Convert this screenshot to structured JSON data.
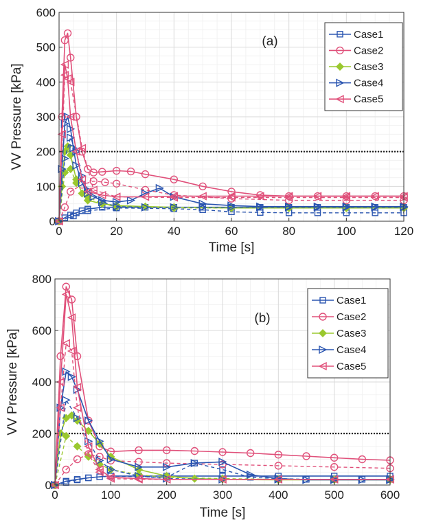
{
  "chart_data": [
    {
      "type": "line",
      "annotation": "(a)",
      "xlabel": "Time [s]",
      "ylabel": "VV Pressure [kPa]",
      "xlim": [
        0,
        120
      ],
      "ylim": [
        0,
        600
      ],
      "xticks": [
        "0",
        "20",
        "40",
        "60",
        "80",
        "100",
        "120"
      ],
      "yticks": [
        "0",
        "100",
        "200",
        "300",
        "400",
        "500",
        "600"
      ],
      "grid": true,
      "legend_position": "top-right",
      "reference_line": {
        "y": 200,
        "style": "dotted",
        "color": "#222222"
      },
      "series": [
        {
          "name": "Case1",
          "color": "#2a55b0",
          "marker": "square",
          "solid": {
            "x": [
              0,
              2,
              4,
              6,
              8,
              10,
              15,
              20,
              30,
              40,
              50,
              60,
              70,
              80,
              90,
              100,
              110,
              120
            ],
            "y": [
              0,
              10,
              18,
              24,
              30,
              35,
              40,
              40,
              40,
              40,
              40,
              40,
              40,
              40,
              40,
              40,
              40,
              40
            ]
          },
          "dashed": {
            "x": [
              0,
              5,
              10,
              20,
              40,
              50,
              60,
              70,
              80,
              90,
              100,
              110,
              120
            ],
            "y": [
              0,
              15,
              30,
              38,
              36,
              33,
              27,
              25,
              24,
              24,
              24,
              24,
              24
            ]
          }
        },
        {
          "name": "Case2",
          "color": "#e0507a",
          "marker": "circle",
          "solid": {
            "x": [
              0,
              1,
              2,
              3,
              4,
              6,
              8,
              10,
              12,
              15,
              20,
              25,
              30,
              40,
              50,
              60,
              70,
              80,
              90,
              100,
              110,
              120
            ],
            "y": [
              0,
              300,
              520,
              540,
              470,
              300,
              200,
              150,
              140,
              142,
              145,
              143,
              135,
              120,
              100,
              85,
              75,
              72,
              72,
              72,
              72,
              72
            ]
          },
          "dashed": {
            "x": [
              0,
              2,
              4,
              8,
              12,
              16,
              20,
              30,
              40,
              60,
              80,
              100,
              120
            ],
            "y": [
              0,
              40,
              85,
              105,
              115,
              112,
              108,
              90,
              75,
              65,
              60,
              60,
              60
            ]
          }
        },
        {
          "name": "Case3",
          "color": "#9ac82e",
          "marker": "diamond",
          "solid": {
            "x": [
              0,
              1,
              2,
              3,
              4,
              6,
              8,
              10,
              15,
              20,
              30,
              40,
              60,
              80,
              100,
              120
            ],
            "y": [
              0,
              100,
              200,
              215,
              190,
              120,
              80,
              60,
              50,
              45,
              42,
              40,
              38,
              38,
              38,
              38
            ]
          },
          "dashed": {
            "x": [
              0,
              2,
              4,
              6,
              10,
              15,
              20,
              40,
              60,
              80,
              100,
              120
            ],
            "y": [
              0,
              140,
              150,
              110,
              70,
              50,
              42,
              38,
              38,
              38,
              38,
              38
            ]
          }
        },
        {
          "name": "Case4",
          "color": "#2a55b0",
          "marker": "triangle-right",
          "solid": {
            "x": [
              0,
              1,
              2,
              3,
              4,
              5,
              6,
              8,
              10,
              12,
              15,
              20,
              25,
              30,
              35,
              40,
              50,
              60,
              70,
              80,
              90,
              100,
              110,
              120
            ],
            "y": [
              0,
              150,
              280,
              300,
              265,
              210,
              160,
              110,
              80,
              70,
              60,
              55,
              60,
              80,
              95,
              70,
              50,
              45,
              42,
              42,
              42,
              42,
              42,
              42
            ]
          },
          "dashed": {
            "x": [
              0,
              2,
              4,
              6,
              8,
              10,
              15,
              20,
              30,
              40,
              50,
              60,
              70,
              80,
              90,
              100,
              110,
              120
            ],
            "y": [
              0,
              180,
              240,
              200,
              130,
              90,
              55,
              42,
              40,
              40,
              40,
              40,
              40,
              40,
              40,
              40,
              40,
              40
            ]
          }
        },
        {
          "name": "Case5",
          "color": "#e0507a",
          "marker": "triangle-left",
          "solid": {
            "x": [
              0,
              1,
              2,
              3,
              4,
              6,
              8,
              10,
              15,
              20,
              30,
              40,
              50,
              60,
              70,
              80,
              90,
              100,
              110,
              120
            ],
            "y": [
              0,
              250,
              450,
              410,
              300,
              200,
              120,
              85,
              75,
              70,
              70,
              72,
              72,
              72,
              72,
              72,
              72,
              72,
              72,
              72
            ]
          },
          "dashed": {
            "x": [
              0,
              2,
              4,
              8,
              12,
              20,
              40,
              60,
              80,
              100,
              120
            ],
            "y": [
              0,
              420,
              400,
              210,
              90,
              70,
              68,
              68,
              68,
              68,
              68
            ]
          }
        }
      ]
    },
    {
      "type": "line",
      "annotation": "(b)",
      "xlabel": "Time [s]",
      "ylabel": "VV Pressure [kPa]",
      "xlim": [
        0,
        600
      ],
      "ylim": [
        0,
        800
      ],
      "xticks": [
        "0",
        "100",
        "200",
        "300",
        "400",
        "500",
        "600"
      ],
      "yticks": [
        "0",
        "200",
        "400",
        "600",
        "800"
      ],
      "grid": true,
      "legend_position": "top-right",
      "reference_line": {
        "y": 200,
        "style": "dotted",
        "color": "#222222"
      },
      "series": [
        {
          "name": "Case1",
          "color": "#2a55b0",
          "marker": "square",
          "solid": {
            "x": [
              0,
              20,
              40,
              60,
              80,
              100,
              150,
              200,
              300,
              400,
              500,
              600
            ],
            "y": [
              0,
              15,
              22,
              28,
              32,
              35,
              35,
              35,
              35,
              35,
              35,
              35
            ]
          },
          "dashed": {
            "x": [
              0,
              20,
              40,
              60,
              100,
              200,
              250,
              300,
              350,
              400,
              450,
              500,
              550,
              600
            ],
            "y": [
              0,
              10,
              20,
              28,
              35,
              30,
              85,
              60,
              30,
              25,
              22,
              22,
              22,
              22
            ]
          }
        },
        {
          "name": "Case2",
          "color": "#e0507a",
          "marker": "circle",
          "solid": {
            "x": [
              0,
              10,
              20,
              30,
              40,
              60,
              80,
              100,
              150,
              200,
              250,
              300,
              350,
              400,
              450,
              500,
              550,
              600
            ],
            "y": [
              0,
              500,
              770,
              720,
              500,
              250,
              150,
              130,
              135,
              135,
              132,
              128,
              124,
              118,
              112,
              106,
              100,
              96
            ]
          },
          "dashed": {
            "x": [
              0,
              20,
              40,
              60,
              80,
              100,
              150,
              200,
              300,
              400,
              500,
              600
            ],
            "y": [
              0,
              60,
              100,
              120,
              110,
              95,
              90,
              85,
              80,
              75,
              70,
              65
            ]
          }
        },
        {
          "name": "Case3",
          "color": "#9ac82e",
          "marker": "diamond",
          "solid": {
            "x": [
              0,
              10,
              20,
              30,
              40,
              60,
              80,
              100,
              150,
              200,
              250,
              300,
              400,
              500,
              600
            ],
            "y": [
              0,
              200,
              260,
              270,
              250,
              210,
              160,
              110,
              60,
              35,
              25,
              22,
              20,
              20,
              20
            ]
          },
          "dashed": {
            "x": [
              0,
              20,
              40,
              60,
              80,
              100,
              150,
              200,
              300,
              400,
              500,
              600
            ],
            "y": [
              0,
              190,
              150,
              110,
              80,
              60,
              40,
              30,
              25,
              22,
              22,
              22
            ]
          }
        },
        {
          "name": "Case4",
          "color": "#2a55b0",
          "marker": "triangle-right",
          "solid": {
            "x": [
              0,
              10,
              20,
              30,
              40,
              60,
              80,
              100,
              150,
              200,
              250,
              300,
              350,
              400,
              450,
              500,
              550,
              600
            ],
            "y": [
              0,
              300,
              440,
              420,
              370,
              250,
              170,
              100,
              70,
              70,
              85,
              90,
              40,
              25,
              20,
              20,
              20,
              20
            ]
          },
          "dashed": {
            "x": [
              0,
              20,
              40,
              60,
              80,
              100,
              150,
              200,
              300,
              400,
              500,
              600
            ],
            "y": [
              0,
              330,
              260,
              170,
              95,
              60,
              35,
              25,
              22,
              22,
              22,
              22
            ]
          }
        },
        {
          "name": "Case5",
          "color": "#e0507a",
          "marker": "triangle-left",
          "solid": {
            "x": [
              0,
              10,
              20,
              30,
              40,
              60,
              80,
              100,
              150,
              200,
              300,
              400,
              500,
              600
            ],
            "y": [
              0,
              400,
              740,
              650,
              380,
              150,
              60,
              30,
              25,
              22,
              22,
              22,
              22,
              22
            ]
          },
          "dashed": {
            "x": [
              0,
              10,
              20,
              30,
              40,
              60,
              80,
              100,
              150,
              200,
              300,
              400,
              500,
              600
            ],
            "y": [
              0,
              300,
              550,
              520,
              300,
              120,
              50,
              25,
              22,
              22,
              22,
              22,
              22,
              22
            ]
          }
        }
      ]
    }
  ]
}
